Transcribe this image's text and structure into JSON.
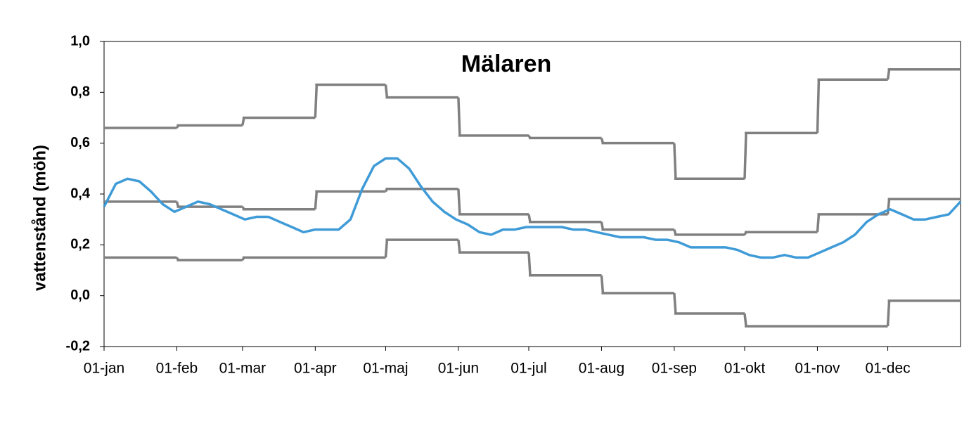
{
  "chart_data": {
    "type": "line",
    "title": "Mälaren",
    "y_label": "vattenstånd (möh)",
    "xlim": [
      0,
      365
    ],
    "xticks": [
      {
        "value": 0,
        "label": "01-jan"
      },
      {
        "value": 31,
        "label": "01-feb"
      },
      {
        "value": 59,
        "label": "01-mar"
      },
      {
        "value": 90,
        "label": "01-apr"
      },
      {
        "value": 120,
        "label": "01-maj"
      },
      {
        "value": 151,
        "label": "01-jun"
      },
      {
        "value": 181,
        "label": "01-jul"
      },
      {
        "value": 212,
        "label": "01-aug"
      },
      {
        "value": 243,
        "label": "01-sep"
      },
      {
        "value": 273,
        "label": "01-okt"
      },
      {
        "value": 304,
        "label": "01-nov"
      },
      {
        "value": 334,
        "label": "01-dec"
      }
    ],
    "ylim": [
      -0.2,
      1.0
    ],
    "yticks": [
      {
        "value": -0.2,
        "label": "-0,2"
      },
      {
        "value": 0,
        "label": "0,0"
      },
      {
        "value": 0.2,
        "label": "0,2"
      },
      {
        "value": 0.4,
        "label": "0,4"
      },
      {
        "value": 0.6,
        "label": "0,6"
      },
      {
        "value": 0.8,
        "label": "0,8"
      },
      {
        "value": 1.0,
        "label": "1,0"
      }
    ],
    "grid": false,
    "series": [
      {
        "color": "#808080",
        "step": "post",
        "x": [
          0,
          31,
          59,
          90,
          120,
          151,
          181,
          212,
          243,
          273,
          304,
          334
        ],
        "values": [
          0.66,
          0.67,
          0.7,
          0.83,
          0.78,
          0.63,
          0.62,
          0.6,
          0.46,
          0.64,
          0.85,
          0.89
        ]
      },
      {
        "color": "#808080",
        "step": "post",
        "x": [
          0,
          31,
          59,
          90,
          120,
          151,
          181,
          212,
          243,
          273,
          304,
          334
        ],
        "values": [
          0.37,
          0.35,
          0.34,
          0.41,
          0.42,
          0.32,
          0.29,
          0.26,
          0.24,
          0.25,
          0.32,
          0.38
        ]
      },
      {
        "color": "#808080",
        "step": "post",
        "x": [
          0,
          31,
          59,
          90,
          120,
          151,
          181,
          212,
          243,
          273,
          304,
          334
        ],
        "values": [
          0.15,
          0.14,
          0.15,
          0.15,
          0.22,
          0.17,
          0.08,
          0.01,
          -0.07,
          -0.12,
          -0.12,
          -0.02
        ]
      },
      {
        "color": "#3f9bd7",
        "x": [
          0,
          5,
          10,
          15,
          20,
          25,
          30,
          35,
          40,
          45,
          50,
          55,
          60,
          65,
          70,
          75,
          80,
          85,
          90,
          95,
          100,
          105,
          110,
          115,
          120,
          125,
          130,
          135,
          140,
          145,
          150,
          155,
          160,
          165,
          170,
          175,
          180,
          185,
          190,
          195,
          200,
          205,
          210,
          215,
          220,
          225,
          230,
          235,
          240,
          245,
          250,
          255,
          260,
          265,
          270,
          275,
          280,
          285,
          290,
          295,
          300,
          305,
          310,
          315,
          320,
          325,
          330,
          335,
          340,
          345,
          350,
          355,
          360,
          365
        ],
        "values": [
          0.35,
          0.44,
          0.46,
          0.45,
          0.41,
          0.36,
          0.33,
          0.35,
          0.37,
          0.36,
          0.34,
          0.32,
          0.3,
          0.31,
          0.31,
          0.29,
          0.27,
          0.25,
          0.26,
          0.26,
          0.26,
          0.3,
          0.42,
          0.51,
          0.54,
          0.54,
          0.5,
          0.43,
          0.37,
          0.33,
          0.3,
          0.28,
          0.25,
          0.24,
          0.26,
          0.26,
          0.27,
          0.27,
          0.27,
          0.27,
          0.26,
          0.26,
          0.25,
          0.24,
          0.23,
          0.23,
          0.23,
          0.22,
          0.22,
          0.21,
          0.19,
          0.19,
          0.19,
          0.19,
          0.18,
          0.16,
          0.15,
          0.15,
          0.16,
          0.15,
          0.15,
          0.17,
          0.19,
          0.21,
          0.24,
          0.29,
          0.32,
          0.34,
          0.32,
          0.3,
          0.3,
          0.31,
          0.32,
          0.37
        ]
      }
    ]
  }
}
